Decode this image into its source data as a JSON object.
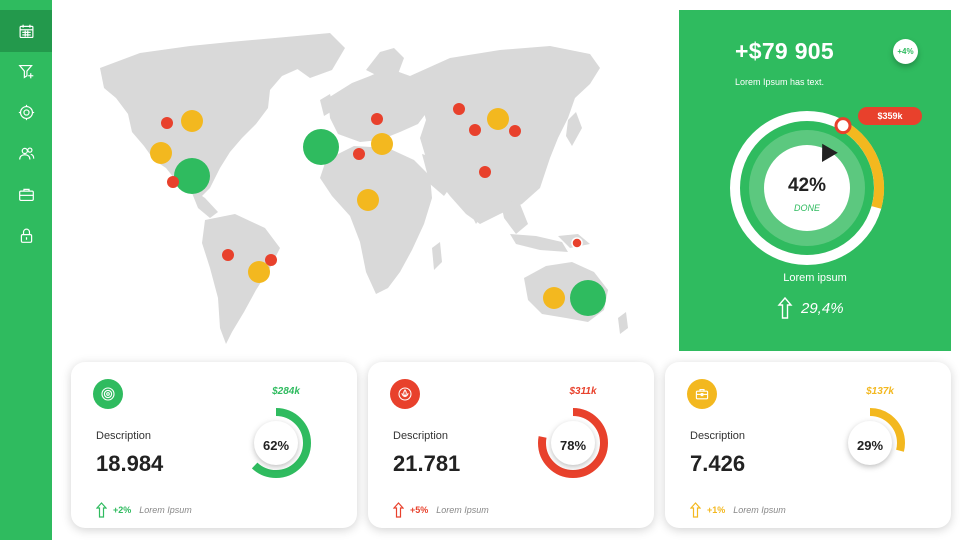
{
  "sidebar": {
    "items": [
      {
        "icon": "calendar-icon",
        "active": true
      },
      {
        "icon": "filter-icon",
        "active": false
      },
      {
        "icon": "settings-icon",
        "active": false
      },
      {
        "icon": "users-icon",
        "active": false
      },
      {
        "icon": "briefcase-icon",
        "active": false
      },
      {
        "icon": "lock-icon",
        "active": false
      }
    ]
  },
  "map": {
    "land_color": "#d9d9d9",
    "markers": [
      {
        "region": "north-america-west",
        "color": "red",
        "size": "small"
      },
      {
        "region": "north-america-west",
        "color": "yellow",
        "size": "medium"
      },
      {
        "region": "north-america-west",
        "color": "yellow",
        "size": "medium"
      },
      {
        "region": "north-america-central",
        "color": "green",
        "size": "large"
      },
      {
        "region": "north-america-south",
        "color": "red",
        "size": "small"
      },
      {
        "region": "atlantic",
        "color": "green",
        "size": "large"
      },
      {
        "region": "scandinavia",
        "color": "red",
        "size": "small"
      },
      {
        "region": "europe",
        "color": "red",
        "size": "small"
      },
      {
        "region": "europe",
        "color": "yellow",
        "size": "medium"
      },
      {
        "region": "africa-north",
        "color": "yellow",
        "size": "medium"
      },
      {
        "region": "russia-west",
        "color": "red",
        "size": "small"
      },
      {
        "region": "russia",
        "color": "red",
        "size": "small"
      },
      {
        "region": "russia",
        "color": "yellow",
        "size": "medium"
      },
      {
        "region": "russia-east",
        "color": "red",
        "size": "small"
      },
      {
        "region": "china",
        "color": "red",
        "size": "small"
      },
      {
        "region": "south-america-north",
        "color": "red",
        "size": "small"
      },
      {
        "region": "south-america-east",
        "color": "red",
        "size": "small"
      },
      {
        "region": "south-america",
        "color": "yellow",
        "size": "medium"
      },
      {
        "region": "new-guinea",
        "color": "red",
        "size": "small"
      },
      {
        "region": "australia",
        "color": "yellow",
        "size": "medium"
      },
      {
        "region": "australia",
        "color": "green",
        "size": "large"
      }
    ]
  },
  "hero": {
    "value": "+$79 905",
    "subtitle": "Lorem Ipsum has text.",
    "badge": "+4%",
    "tag": "$359k",
    "gauge_percent": "42%",
    "gauge_fraction": 0.42,
    "gauge_status": "DONE",
    "caption": "Lorem ipsum",
    "trend": "29,4%"
  },
  "cards": [
    {
      "icon": "target-icon",
      "color": "#2fbb5f",
      "description": "Description",
      "value": "18.984",
      "amount": "$284k",
      "percent": "62%",
      "fraction": 0.62,
      "change": "+2%",
      "note": "Lorem Ipsum"
    },
    {
      "icon": "lotus-icon",
      "color": "#e8412c",
      "description": "Description",
      "value": "21.781",
      "amount": "$311k",
      "percent": "78%",
      "fraction": 0.78,
      "change": "+5%",
      "note": "Lorem Ipsum"
    },
    {
      "icon": "briefcase-icon",
      "color": "#f3b81f",
      "description": "Description",
      "value": "7.426",
      "amount": "$137k",
      "percent": "29%",
      "fraction": 0.29,
      "change": "+1%",
      "note": "Lorem Ipsum"
    }
  ],
  "colors": {
    "green": "#2fbb5f",
    "red": "#e8412c",
    "yellow": "#f3b81f"
  }
}
